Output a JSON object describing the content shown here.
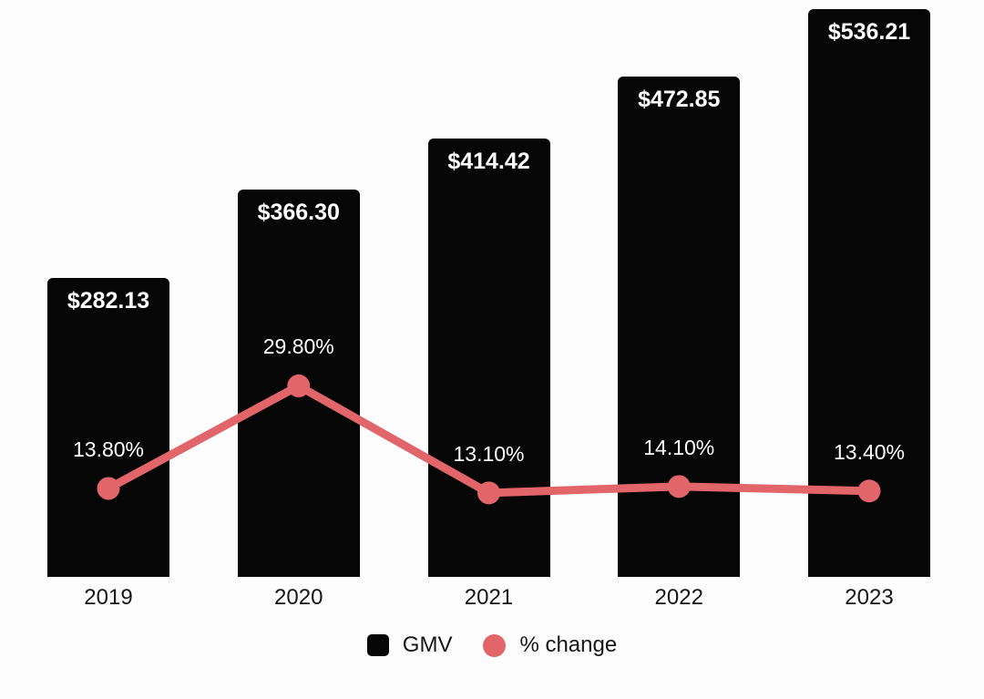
{
  "chart_data": {
    "type": "bar",
    "subtype": "bar-with-line-overlay",
    "title": "",
    "xlabel": "",
    "ylabel": "",
    "categories": [
      "2019",
      "2020",
      "2021",
      "2022",
      "2023"
    ],
    "series": [
      {
        "name": "GMV",
        "type": "bar",
        "values": [
          282.13,
          366.3,
          414.42,
          472.85,
          536.21
        ],
        "labels": [
          "$282.13",
          "$366.30",
          "$414.42",
          "$472.85",
          "$536.21"
        ],
        "color": "#060606",
        "ylim": [
          0,
          545
        ]
      },
      {
        "name": "% change",
        "type": "line",
        "values": [
          13.8,
          29.8,
          13.1,
          14.1,
          13.4
        ],
        "labels": [
          "13.80%",
          "29.80%",
          "13.10%",
          "14.10%",
          "13.40%"
        ],
        "color": "#e2656a",
        "ylim": [
          0,
          90
        ]
      }
    ],
    "legend": [
      {
        "label": "GMV",
        "swatch": "square",
        "color": "#060606"
      },
      {
        "label": "% change",
        "swatch": "circle",
        "color": "#e2656a"
      }
    ],
    "legend_position": "bottom-center",
    "grid": false,
    "axes_visible": false,
    "background": "#fdfdfd",
    "value_label_color": "#ffffff",
    "category_label_color": "#161616"
  }
}
